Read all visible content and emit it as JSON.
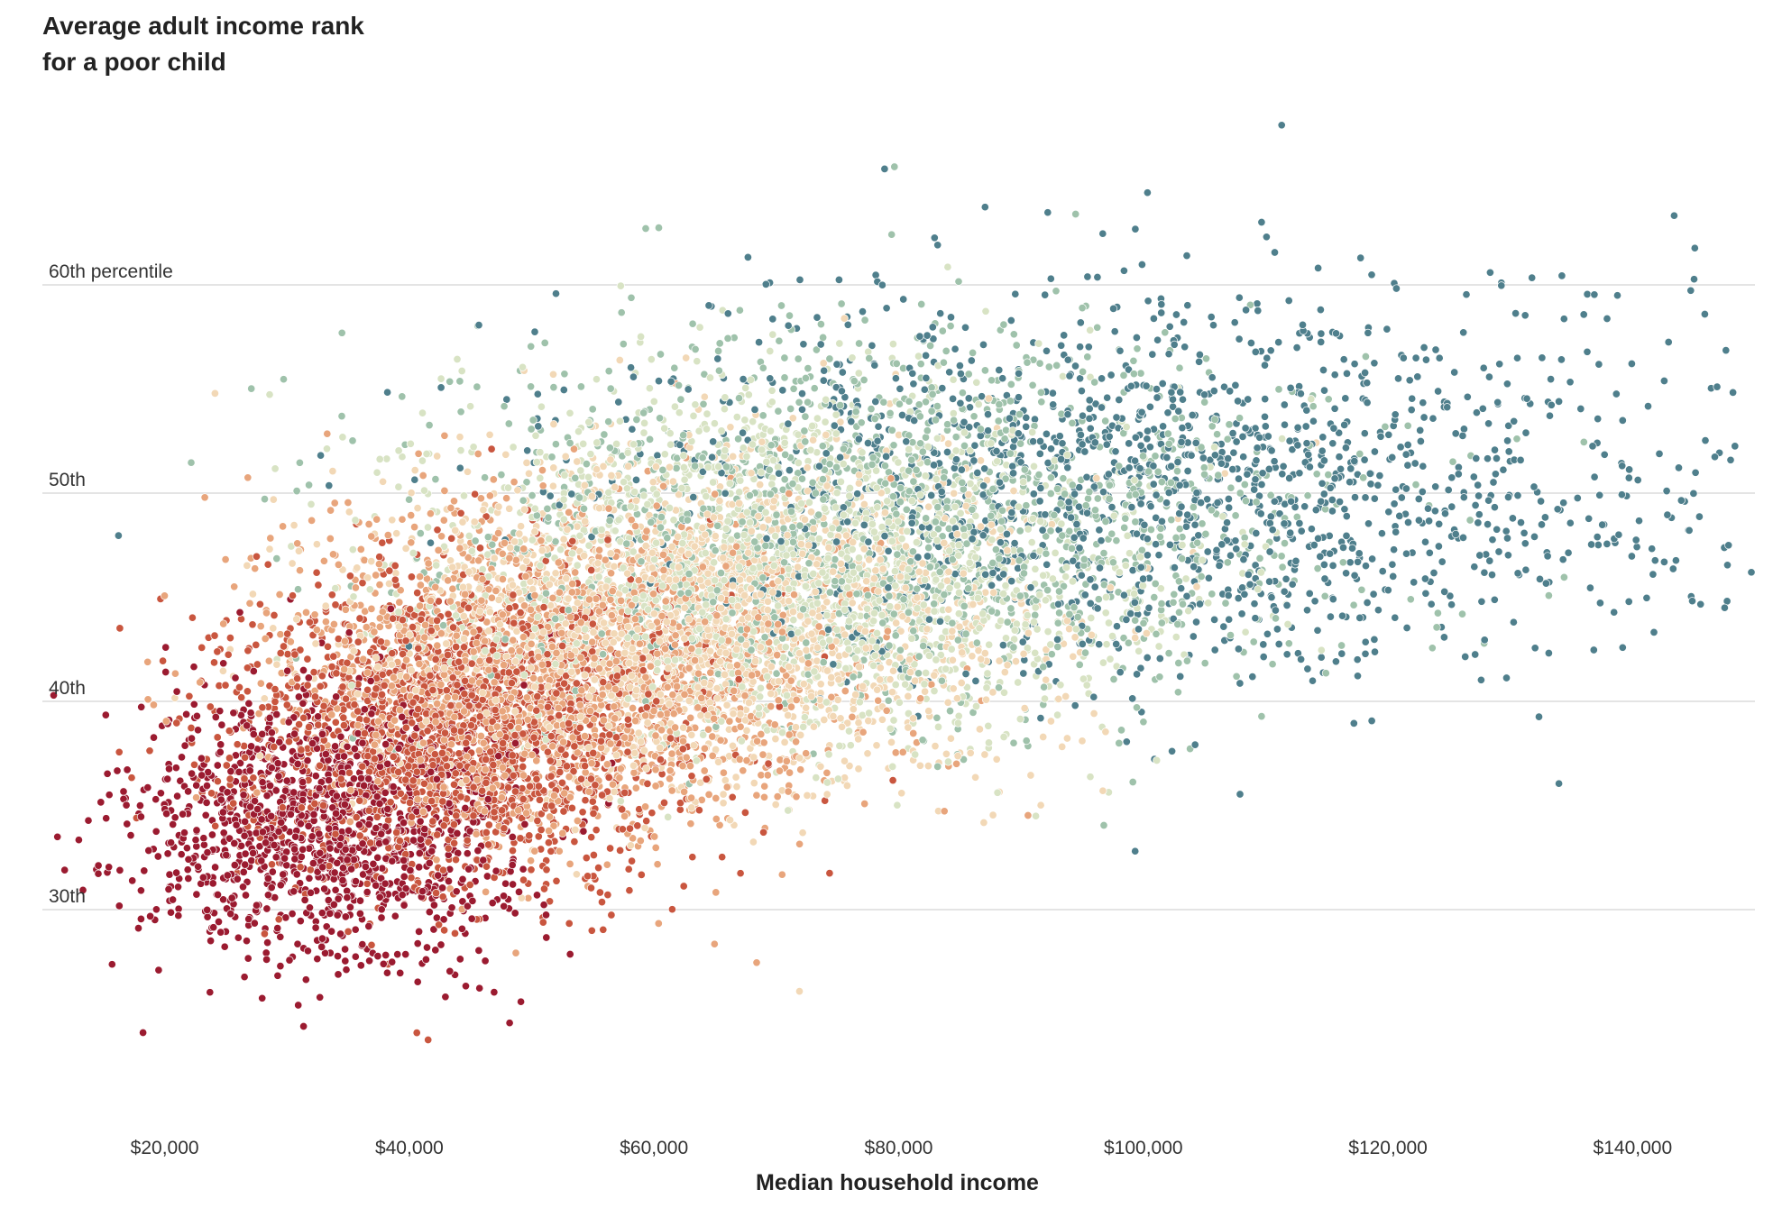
{
  "chart_data": {
    "type": "scatter",
    "title_line1": "Average adult income rank",
    "title_line2": "for a poor child",
    "xlabel": "Median household income",
    "ylabel": "",
    "xlim": [
      10000,
      150000
    ],
    "ylim": [
      20,
      70
    ],
    "x_ticks": [
      20000,
      40000,
      60000,
      80000,
      100000,
      120000,
      140000
    ],
    "x_tick_labels": [
      "$20,000",
      "$40,000",
      "$60,000",
      "$80,000",
      "$100,000",
      "$120,000",
      "$140,000"
    ],
    "y_ticks": [
      30,
      40,
      50,
      60
    ],
    "y_tick_labels": [
      "30th",
      "40th",
      "50th",
      "60th percentile"
    ],
    "grid": true,
    "legend": "none",
    "color_scale": [
      "#9b1b30",
      "#c9563f",
      "#e8a57c",
      "#f2d8b6",
      "#d8e3c4",
      "#9fc2ab",
      "#4f7f8c"
    ],
    "series": [
      {
        "name": "",
        "color": "#9b1b30",
        "count": 1300,
        "x_mean": 33000,
        "x_sd": 7500,
        "y_mean": 34.0,
        "y_sd": 3.3
      },
      {
        "name": "",
        "color": "#c9563f",
        "count": 1900,
        "x_mean": 44000,
        "x_sd": 9000,
        "y_mean": 38.5,
        "y_sd": 3.6
      },
      {
        "name": "",
        "color": "#e8a57c",
        "count": 2000,
        "x_mean": 53000,
        "x_sd": 11000,
        "y_mean": 41.5,
        "y_sd": 3.8
      },
      {
        "name": "",
        "color": "#f2d8b6",
        "count": 2000,
        "x_mean": 64000,
        "x_sd": 13000,
        "y_mean": 44.0,
        "y_sd": 4.0
      },
      {
        "name": "",
        "color": "#d8e3c4",
        "count": 1700,
        "x_mean": 71000,
        "x_sd": 15000,
        "y_mean": 46.5,
        "y_sd": 4.2
      },
      {
        "name": "",
        "color": "#9fc2ab",
        "count": 1500,
        "x_mean": 79000,
        "x_sd": 18000,
        "y_mean": 48.5,
        "y_sd": 4.5
      },
      {
        "name": "",
        "color": "#4f7f8c",
        "count": 1600,
        "x_mean": 102000,
        "x_sd": 22000,
        "y_mean": 50.5,
        "y_sd": 4.6
      }
    ]
  }
}
